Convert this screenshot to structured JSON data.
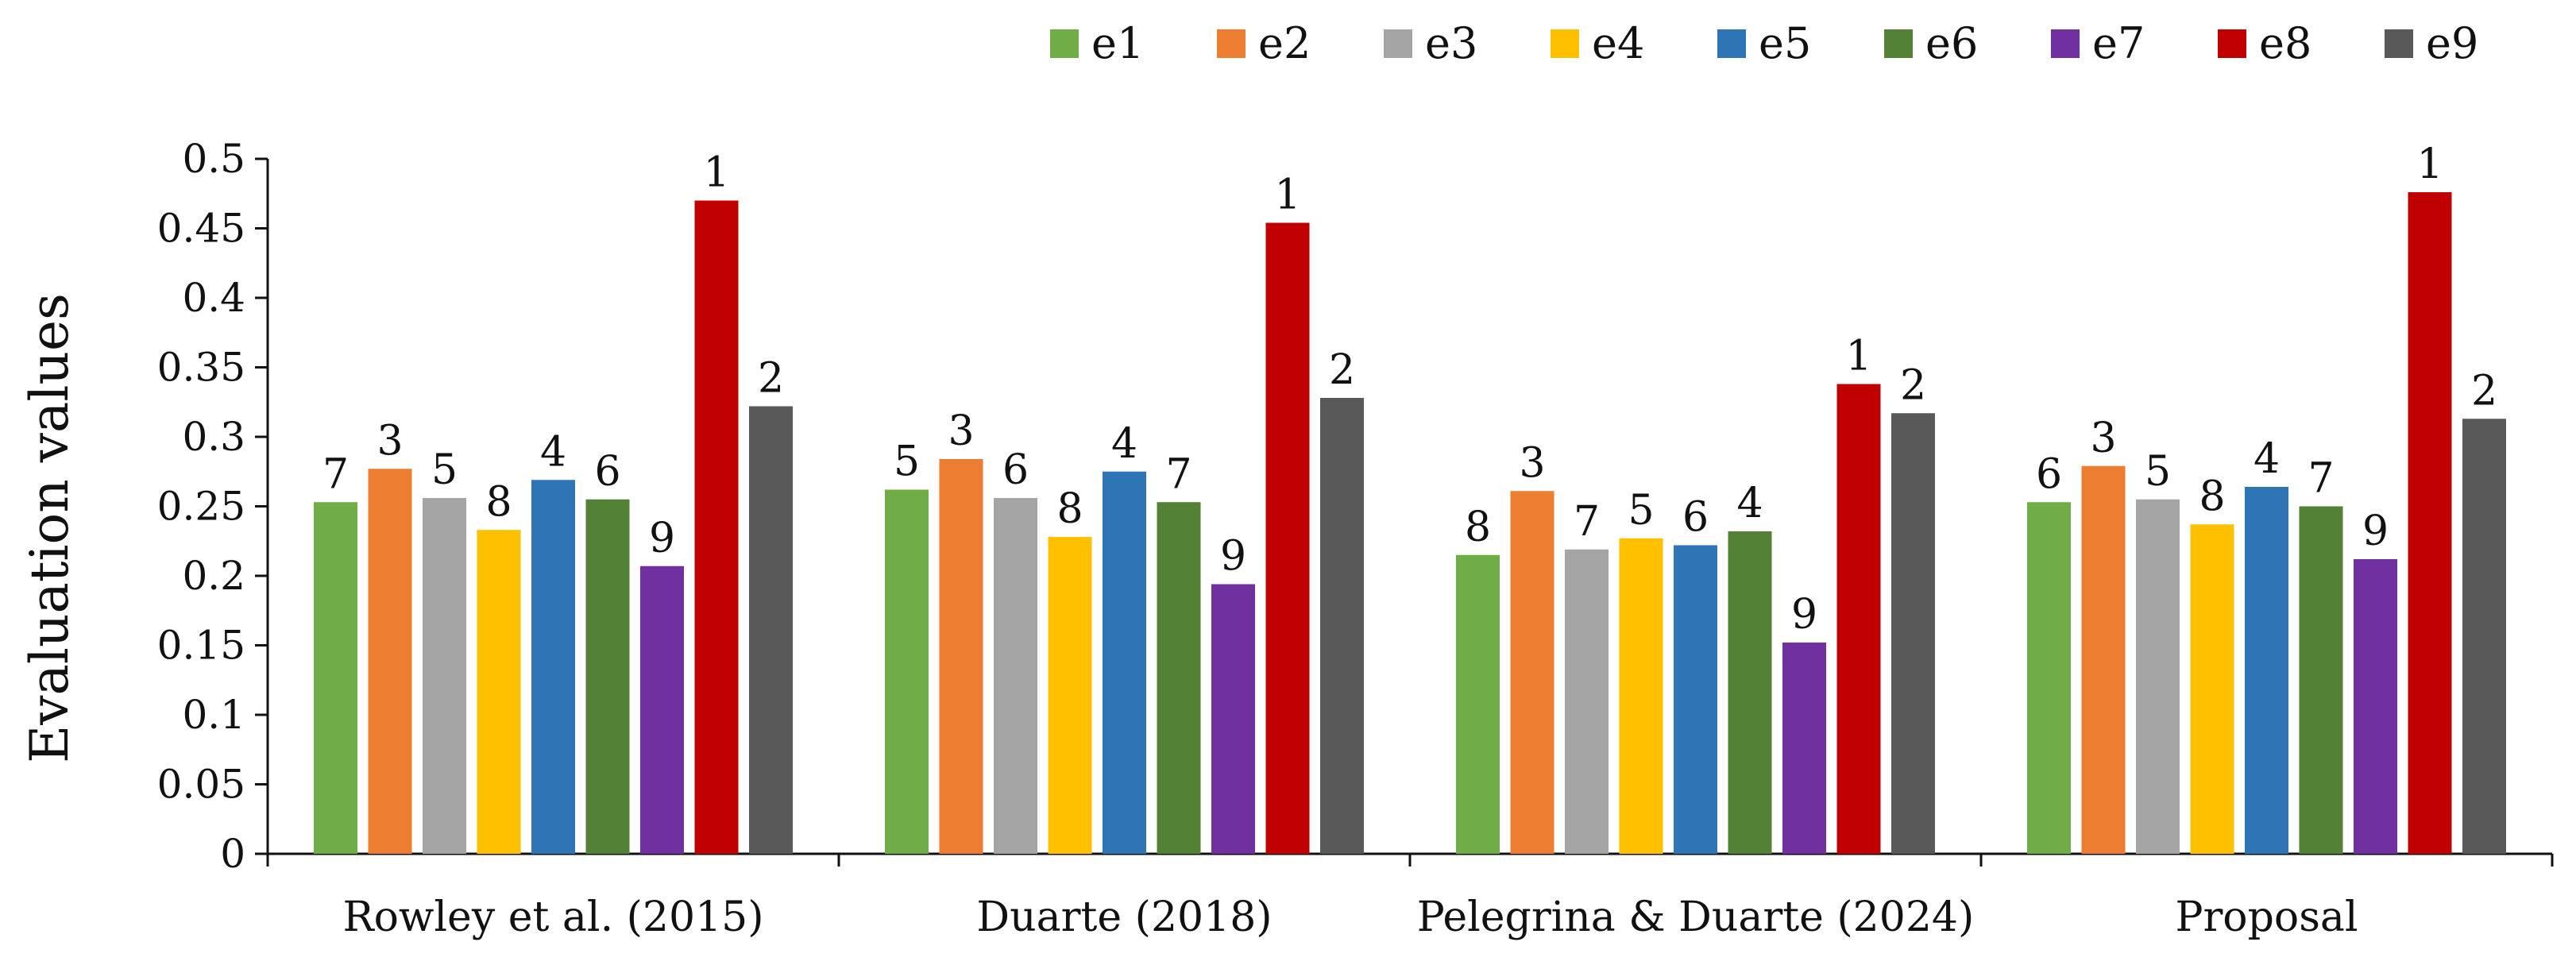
{
  "chart_data": {
    "type": "bar",
    "title": "",
    "xlabel": "",
    "ylabel": "Evaluation values",
    "ylim": [
      0,
      0.5
    ],
    "yticks": [
      "0",
      "0.05",
      "0.1",
      "0.15",
      "0.2",
      "0.25",
      "0.3",
      "0.35",
      "0.4",
      "0.45",
      "0.5"
    ],
    "grid": false,
    "legend_position": "top",
    "categories": [
      "Rowley et al. (2015)",
      "Duarte (2018)",
      "Pelegrina & Duarte (2024)",
      "Proposal"
    ],
    "series": [
      {
        "name": "e1",
        "color": "#70AD47",
        "values": [
          0.253,
          0.262,
          0.215,
          0.253
        ],
        "ranks": [
          "7",
          "5",
          "8",
          "6"
        ]
      },
      {
        "name": "e2",
        "color": "#ED7D31",
        "values": [
          0.277,
          0.284,
          0.261,
          0.279
        ],
        "ranks": [
          "3",
          "3",
          "3",
          "3"
        ]
      },
      {
        "name": "e3",
        "color": "#A5A5A5",
        "values": [
          0.256,
          0.256,
          0.219,
          0.255
        ],
        "ranks": [
          "5",
          "6",
          "7",
          "5"
        ]
      },
      {
        "name": "e4",
        "color": "#FFC000",
        "values": [
          0.233,
          0.228,
          0.227,
          0.237
        ],
        "ranks": [
          "8",
          "8",
          "5",
          "8"
        ]
      },
      {
        "name": "e5",
        "color": "#2E75B6",
        "values": [
          0.269,
          0.275,
          0.222,
          0.264
        ],
        "ranks": [
          "4",
          "4",
          "6",
          "4"
        ]
      },
      {
        "name": "e6",
        "color": "#538135",
        "values": [
          0.255,
          0.253,
          0.232,
          0.25
        ],
        "ranks": [
          "6",
          "7",
          "4",
          "7"
        ]
      },
      {
        "name": "e7",
        "color": "#7030A0",
        "values": [
          0.207,
          0.194,
          0.152,
          0.212
        ],
        "ranks": [
          "9",
          "9",
          "9",
          "9"
        ]
      },
      {
        "name": "e8",
        "color": "#C00000",
        "values": [
          0.47,
          0.454,
          0.338,
          0.476
        ],
        "ranks": [
          "1",
          "1",
          "1",
          "1"
        ]
      },
      {
        "name": "e9",
        "color": "#595959",
        "values": [
          0.322,
          0.328,
          0.317,
          0.313
        ],
        "ranks": [
          "2",
          "2",
          "2",
          "2"
        ]
      }
    ]
  }
}
